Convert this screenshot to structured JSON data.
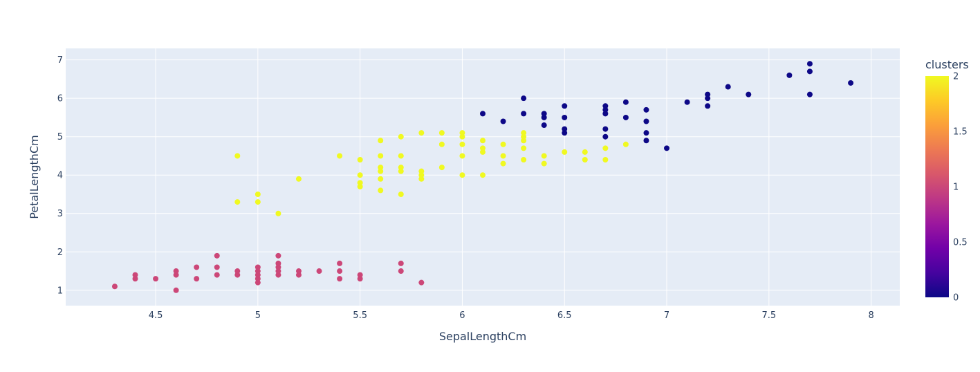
{
  "chart_data": {
    "type": "scatter",
    "xlabel": "SepalLengthCm",
    "ylabel": "PetalLengthCm",
    "xlim": [
      4.06,
      8.14
    ],
    "ylim": [
      0.6,
      7.3
    ],
    "x_ticks": [
      4.5,
      5,
      5.5,
      6,
      6.5,
      7,
      7.5,
      8
    ],
    "x_tick_labels": [
      "4.5",
      "5",
      "5.5",
      "6",
      "6.5",
      "7",
      "7.5",
      "8"
    ],
    "y_ticks": [
      1,
      2,
      3,
      4,
      5,
      6,
      7
    ],
    "y_tick_labels": [
      "1",
      "2",
      "3",
      "4",
      "5",
      "6",
      "7"
    ],
    "grid": true,
    "plot_bgcolor": "#e5ecf6",
    "colorbar": {
      "title": "clusters",
      "range": [
        0,
        2
      ],
      "ticks": [
        0,
        0.5,
        1,
        1.5,
        2
      ],
      "tick_labels": [
        "0",
        "0.5",
        "1",
        "1.5",
        "2"
      ],
      "colorscale": [
        "#0d0887",
        "#46039f",
        "#7201a8",
        "#9c179e",
        "#bd3786",
        "#d8576b",
        "#ed7953",
        "#fb9f3a",
        "#fdca26",
        "#f0f921"
      ]
    },
    "series": [
      {
        "cluster": 1,
        "color": "#cc4778",
        "points": [
          [
            4.3,
            1.1
          ],
          [
            4.4,
            1.3
          ],
          [
            4.4,
            1.4
          ],
          [
            4.5,
            1.3
          ],
          [
            4.6,
            1.0
          ],
          [
            4.6,
            1.4
          ],
          [
            4.6,
            1.5
          ],
          [
            4.7,
            1.3
          ],
          [
            4.7,
            1.6
          ],
          [
            4.8,
            1.4
          ],
          [
            4.8,
            1.6
          ],
          [
            4.8,
            1.9
          ],
          [
            4.9,
            1.4
          ],
          [
            4.9,
            1.5
          ],
          [
            5.0,
            1.2
          ],
          [
            5.0,
            1.3
          ],
          [
            5.0,
            1.4
          ],
          [
            5.0,
            1.5
          ],
          [
            5.0,
            1.6
          ],
          [
            5.1,
            1.4
          ],
          [
            5.1,
            1.5
          ],
          [
            5.1,
            1.6
          ],
          [
            5.1,
            1.7
          ],
          [
            5.1,
            1.9
          ],
          [
            5.2,
            1.4
          ],
          [
            5.2,
            1.5
          ],
          [
            5.3,
            1.5
          ],
          [
            5.4,
            1.3
          ],
          [
            5.4,
            1.5
          ],
          [
            5.4,
            1.7
          ],
          [
            5.5,
            1.3
          ],
          [
            5.5,
            1.4
          ],
          [
            5.7,
            1.5
          ],
          [
            5.7,
            1.7
          ],
          [
            5.8,
            1.2
          ]
        ]
      },
      {
        "cluster": 2,
        "color": "#f0f921",
        "points": [
          [
            4.9,
            3.3
          ],
          [
            4.9,
            4.5
          ],
          [
            5.0,
            3.3
          ],
          [
            5.0,
            3.5
          ],
          [
            5.1,
            3.0
          ],
          [
            5.2,
            3.9
          ],
          [
            5.4,
            4.5
          ],
          [
            5.5,
            3.7
          ],
          [
            5.5,
            3.8
          ],
          [
            5.5,
            4.0
          ],
          [
            5.5,
            4.4
          ],
          [
            5.6,
            3.6
          ],
          [
            5.6,
            3.9
          ],
          [
            5.6,
            4.1
          ],
          [
            5.6,
            4.2
          ],
          [
            5.6,
            4.5
          ],
          [
            5.6,
            4.9
          ],
          [
            5.7,
            3.5
          ],
          [
            5.7,
            4.1
          ],
          [
            5.7,
            4.2
          ],
          [
            5.7,
            4.5
          ],
          [
            5.7,
            5.0
          ],
          [
            5.8,
            3.9
          ],
          [
            5.8,
            4.0
          ],
          [
            5.8,
            4.1
          ],
          [
            5.8,
            5.1
          ],
          [
            5.9,
            4.2
          ],
          [
            5.9,
            4.8
          ],
          [
            5.9,
            5.1
          ],
          [
            6.0,
            4.0
          ],
          [
            6.0,
            4.5
          ],
          [
            6.0,
            4.8
          ],
          [
            6.0,
            5.0
          ],
          [
            6.0,
            5.1
          ],
          [
            6.1,
            4.0
          ],
          [
            6.1,
            4.6
          ],
          [
            6.1,
            4.7
          ],
          [
            6.1,
            4.9
          ],
          [
            6.2,
            4.3
          ],
          [
            6.2,
            4.5
          ],
          [
            6.2,
            4.8
          ],
          [
            6.3,
            4.4
          ],
          [
            6.3,
            4.7
          ],
          [
            6.3,
            4.9
          ],
          [
            6.3,
            5.0
          ],
          [
            6.3,
            5.1
          ],
          [
            6.4,
            4.3
          ],
          [
            6.4,
            4.5
          ],
          [
            6.5,
            4.6
          ],
          [
            6.6,
            4.4
          ],
          [
            6.6,
            4.6
          ],
          [
            6.7,
            4.4
          ],
          [
            6.7,
            4.7
          ],
          [
            6.8,
            4.8
          ]
        ]
      },
      {
        "cluster": 0,
        "color": "#0d0887",
        "points": [
          [
            6.1,
            5.6
          ],
          [
            6.2,
            5.4
          ],
          [
            6.3,
            5.6
          ],
          [
            6.3,
            6.0
          ],
          [
            6.4,
            5.3
          ],
          [
            6.4,
            5.5
          ],
          [
            6.4,
            5.6
          ],
          [
            6.5,
            5.1
          ],
          [
            6.5,
            5.2
          ],
          [
            6.5,
            5.5
          ],
          [
            6.5,
            5.8
          ],
          [
            6.7,
            5.0
          ],
          [
            6.7,
            5.2
          ],
          [
            6.7,
            5.6
          ],
          [
            6.7,
            5.7
          ],
          [
            6.7,
            5.8
          ],
          [
            6.8,
            5.5
          ],
          [
            6.8,
            5.9
          ],
          [
            6.9,
            4.9
          ],
          [
            6.9,
            5.1
          ],
          [
            6.9,
            5.4
          ],
          [
            6.9,
            5.7
          ],
          [
            7.0,
            4.7
          ],
          [
            7.1,
            5.9
          ],
          [
            7.2,
            5.8
          ],
          [
            7.2,
            6.0
          ],
          [
            7.2,
            6.1
          ],
          [
            7.3,
            6.3
          ],
          [
            7.4,
            6.1
          ],
          [
            7.6,
            6.6
          ],
          [
            7.7,
            6.1
          ],
          [
            7.7,
            6.7
          ],
          [
            7.7,
            6.9
          ],
          [
            7.9,
            6.4
          ]
        ]
      }
    ]
  }
}
